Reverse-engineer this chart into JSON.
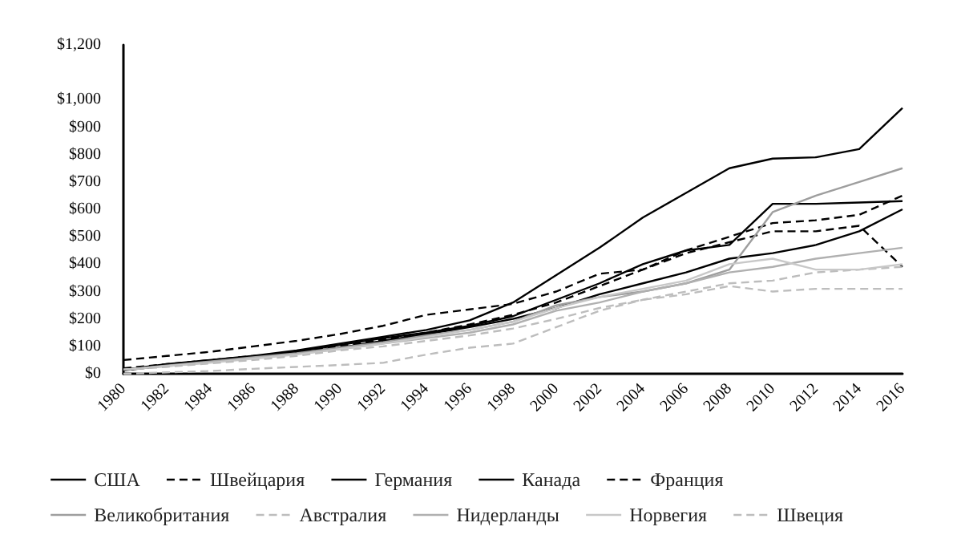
{
  "chart_data": {
    "type": "line",
    "x": [
      1980,
      1982,
      1984,
      1986,
      1988,
      1990,
      1992,
      1994,
      1996,
      1998,
      2000,
      2002,
      2004,
      2006,
      2008,
      2010,
      2012,
      2014,
      2016
    ],
    "series": [
      {
        "name": "США",
        "color": "#000000",
        "line_style": "solid",
        "values": [
          15,
          35,
          50,
          65,
          85,
          110,
          135,
          160,
          195,
          260,
          360,
          460,
          570,
          660,
          750,
          785,
          790,
          820,
          970
        ]
      },
      {
        "name": "Швейцария",
        "color": "#000000",
        "line_style": "dashed",
        "values": [
          20,
          35,
          50,
          65,
          80,
          100,
          125,
          150,
          180,
          215,
          260,
          320,
          380,
          450,
          500,
          550,
          560,
          580,
          650
        ]
      },
      {
        "name": "Германия",
        "color": "#000000",
        "line_style": "solid",
        "values": [
          12,
          30,
          45,
          60,
          75,
          95,
          120,
          145,
          170,
          200,
          240,
          290,
          330,
          370,
          420,
          440,
          470,
          520,
          600
        ]
      },
      {
        "name": "Канада",
        "color": "#000000",
        "line_style": "solid",
        "values": [
          15,
          32,
          48,
          62,
          80,
          105,
          130,
          150,
          175,
          210,
          270,
          330,
          400,
          450,
          470,
          620,
          620,
          625,
          630
        ]
      },
      {
        "name": "Франция",
        "color": "#000000",
        "line_style": "dashed",
        "values": [
          50,
          65,
          80,
          100,
          120,
          145,
          175,
          215,
          235,
          255,
          300,
          365,
          380,
          440,
          480,
          520,
          520,
          540,
          390
        ]
      },
      {
        "name": "Великобритания",
        "color": "#9e9e9e",
        "line_style": "solid",
        "values": [
          15,
          30,
          45,
          60,
          75,
          95,
          115,
          140,
          160,
          190,
          250,
          280,
          300,
          330,
          380,
          590,
          650,
          700,
          750
        ]
      },
      {
        "name": "Австралия",
        "color": "#bdbdbd",
        "line_style": "dashed",
        "values": [
          0,
          5,
          10,
          18,
          25,
          32,
          40,
          70,
          95,
          110,
          170,
          230,
          270,
          300,
          330,
          340,
          370,
          380,
          390
        ]
      },
      {
        "name": "Нидерланды",
        "color": "#b0b0b0",
        "line_style": "solid",
        "values": [
          15,
          28,
          42,
          58,
          72,
          90,
          110,
          130,
          150,
          180,
          230,
          260,
          300,
          330,
          370,
          390,
          420,
          440,
          460
        ]
      },
      {
        "name": "Норвегия",
        "color": "#c8c8c8",
        "line_style": "solid",
        "values": [
          15,
          28,
          40,
          55,
          70,
          90,
          110,
          135,
          160,
          190,
          240,
          280,
          310,
          340,
          400,
          420,
          380,
          380,
          400
        ]
      },
      {
        "name": "Швеция",
        "color": "#bdbdbd",
        "line_style": "dashed",
        "values": [
          15,
          25,
          38,
          50,
          65,
          85,
          100,
          120,
          140,
          165,
          200,
          240,
          270,
          290,
          320,
          300,
          310,
          310,
          310
        ]
      }
    ],
    "xlim": [
      1980,
      2016
    ],
    "xticks": [
      1980,
      1982,
      1984,
      1986,
      1988,
      1990,
      1992,
      1994,
      1996,
      1998,
      2000,
      2002,
      2004,
      2006,
      2008,
      2010,
      2012,
      2014,
      2016
    ],
    "ylim": [
      0,
      1200
    ],
    "yticks": [
      {
        "value": 0,
        "label": "$0"
      },
      {
        "value": 100,
        "label": "$100"
      },
      {
        "value": 200,
        "label": "$200"
      },
      {
        "value": 300,
        "label": "$300"
      },
      {
        "value": 400,
        "label": "$400"
      },
      {
        "value": 500,
        "label": "$500"
      },
      {
        "value": 600,
        "label": "$600"
      },
      {
        "value": 700,
        "label": "$700"
      },
      {
        "value": 800,
        "label": "$800"
      },
      {
        "value": 900,
        "label": "$900"
      },
      {
        "value": 1000,
        "label": "$1,000"
      },
      {
        "value": 1200,
        "label": "$1,200"
      }
    ],
    "grid": false,
    "legend": "bottom",
    "marker": "none"
  }
}
